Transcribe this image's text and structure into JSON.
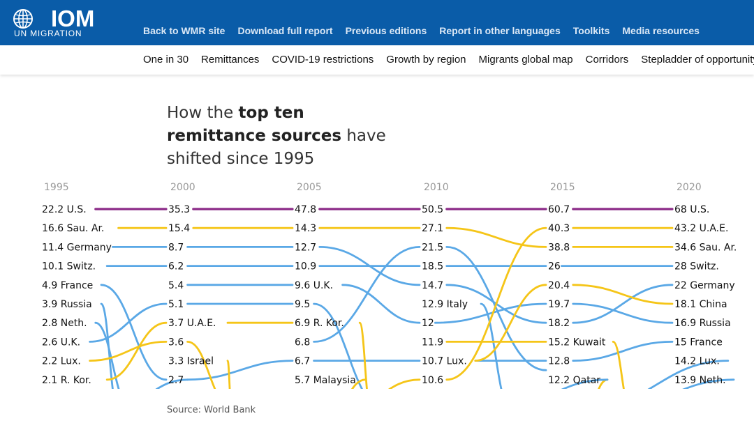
{
  "header": {
    "logo_text": "IOM",
    "logo_sub": "UN MIGRATION",
    "nav": [
      "Back to WMR site",
      "Download full report",
      "Previous editions",
      "Report in other languages",
      "Toolkits",
      "Media resources"
    ]
  },
  "subnav": {
    "items": [
      "One in 30",
      "Remittances",
      "COVID-19 restrictions",
      "Growth by region",
      "Migrants global map",
      "Corridors",
      "Stepladder of opportunity"
    ]
  },
  "title": {
    "part1": "How the ",
    "bold": "top ten remittance sources",
    "part2": " have shifted since 1995"
  },
  "source": "Source: World Bank",
  "colors": {
    "topbar": "#0a5ca8",
    "us": "#8b2a87",
    "gulf": "#f5c518",
    "other": "#5aa8e6",
    "year_label": "#999999"
  },
  "chart_data": {
    "type": "line",
    "subtype": "slope-rank",
    "years": [
      "1995",
      "2000",
      "2005",
      "2010",
      "2015",
      "2020"
    ],
    "columns": [
      [
        {
          "value": "22.2",
          "country": "U.S."
        },
        {
          "value": "16.6",
          "country": "Sau. Ar."
        },
        {
          "value": "11.4",
          "country": "Germany"
        },
        {
          "value": "10.1",
          "country": "Switz."
        },
        {
          "value": "4.9",
          "country": "France"
        },
        {
          "value": "3.9",
          "country": "Russia"
        },
        {
          "value": "2.8",
          "country": "Neth."
        },
        {
          "value": "2.6",
          "country": "U.K."
        },
        {
          "value": "2.2",
          "country": "Lux."
        },
        {
          "value": "2.1",
          "country": "R. Kor."
        }
      ],
      [
        {
          "value": "35.3",
          "country": ""
        },
        {
          "value": "15.4",
          "country": ""
        },
        {
          "value": "8.7",
          "country": ""
        },
        {
          "value": "6.2",
          "country": ""
        },
        {
          "value": "5.4",
          "country": ""
        },
        {
          "value": "5.1",
          "country": ""
        },
        {
          "value": "3.7",
          "country": "U.A.E."
        },
        {
          "value": "3.6",
          "country": ""
        },
        {
          "value": "3.3",
          "country": "Israel"
        },
        {
          "value": "2.7",
          "country": ""
        }
      ],
      [
        {
          "value": "47.8",
          "country": ""
        },
        {
          "value": "14.3",
          "country": ""
        },
        {
          "value": "12.7",
          "country": ""
        },
        {
          "value": "10.9",
          "country": ""
        },
        {
          "value": "9.6",
          "country": "U.K."
        },
        {
          "value": "9.5",
          "country": ""
        },
        {
          "value": "6.9",
          "country": "R. Kor."
        },
        {
          "value": "6.8",
          "country": ""
        },
        {
          "value": "6.7",
          "country": ""
        },
        {
          "value": "5.7",
          "country": "Malaysia"
        }
      ],
      [
        {
          "value": "50.5",
          "country": ""
        },
        {
          "value": "27.1",
          "country": ""
        },
        {
          "value": "21.5",
          "country": ""
        },
        {
          "value": "18.5",
          "country": ""
        },
        {
          "value": "14.7",
          "country": ""
        },
        {
          "value": "12.9",
          "country": "Italy"
        },
        {
          "value": "12",
          "country": ""
        },
        {
          "value": "11.9",
          "country": ""
        },
        {
          "value": "10.7",
          "country": "Lux."
        },
        {
          "value": "10.6",
          "country": ""
        }
      ],
      [
        {
          "value": "60.7",
          "country": ""
        },
        {
          "value": "40.3",
          "country": ""
        },
        {
          "value": "38.8",
          "country": ""
        },
        {
          "value": "26",
          "country": ""
        },
        {
          "value": "20.4",
          "country": ""
        },
        {
          "value": "19.7",
          "country": ""
        },
        {
          "value": "18.2",
          "country": ""
        },
        {
          "value": "15.2",
          "country": "Kuwait"
        },
        {
          "value": "12.8",
          "country": ""
        },
        {
          "value": "12.2",
          "country": "Qatar"
        }
      ],
      [
        {
          "value": "68",
          "country": "U.S."
        },
        {
          "value": "43.2",
          "country": "U.A.E."
        },
        {
          "value": "34.6",
          "country": "Sau. Ar."
        },
        {
          "value": "28",
          "country": "Switz."
        },
        {
          "value": "22",
          "country": "Germany"
        },
        {
          "value": "18.1",
          "country": "China"
        },
        {
          "value": "16.9",
          "country": "Russia"
        },
        {
          "value": "15",
          "country": "France"
        },
        {
          "value": "14.2",
          "country": "Lux."
        },
        {
          "value": "13.9",
          "country": "Neth."
        }
      ]
    ],
    "links": [
      {
        "from": [
          0,
          0
        ],
        "to": [
          1,
          0
        ],
        "color": "us"
      },
      {
        "from": [
          1,
          0
        ],
        "to": [
          2,
          0
        ],
        "color": "us"
      },
      {
        "from": [
          2,
          0
        ],
        "to": [
          3,
          0
        ],
        "color": "us"
      },
      {
        "from": [
          3,
          0
        ],
        "to": [
          4,
          0
        ],
        "color": "us"
      },
      {
        "from": [
          4,
          0
        ],
        "to": [
          5,
          0
        ],
        "color": "us"
      },
      {
        "from": [
          0,
          1
        ],
        "to": [
          1,
          1
        ],
        "color": "gulf"
      },
      {
        "from": [
          1,
          1
        ],
        "to": [
          2,
          1
        ],
        "color": "gulf"
      },
      {
        "from": [
          2,
          1
        ],
        "to": [
          3,
          1
        ],
        "color": "gulf"
      },
      {
        "from": [
          3,
          1
        ],
        "to": [
          4,
          2
        ],
        "color": "gulf"
      },
      {
        "from": [
          4,
          2
        ],
        "to": [
          5,
          2
        ],
        "color": "gulf"
      },
      {
        "from": [
          0,
          2
        ],
        "to": [
          1,
          2
        ],
        "color": "other"
      },
      {
        "from": [
          1,
          2
        ],
        "to": [
          2,
          2
        ],
        "color": "other"
      },
      {
        "from": [
          2,
          2
        ],
        "to": [
          3,
          4
        ],
        "color": "other"
      },
      {
        "from": [
          3,
          4
        ],
        "to": [
          4,
          6
        ],
        "color": "other"
      },
      {
        "from": [
          4,
          6
        ],
        "to": [
          5,
          4
        ],
        "color": "other"
      },
      {
        "from": [
          0,
          3
        ],
        "to": [
          1,
          3
        ],
        "color": "other"
      },
      {
        "from": [
          1,
          3
        ],
        "to": [
          2,
          3
        ],
        "color": "other"
      },
      {
        "from": [
          2,
          3
        ],
        "to": [
          3,
          3
        ],
        "color": "other"
      },
      {
        "from": [
          3,
          3
        ],
        "to": [
          4,
          3
        ],
        "color": "other"
      },
      {
        "from": [
          4,
          3
        ],
        "to": [
          5,
          3
        ],
        "color": "other"
      },
      {
        "from": [
          0,
          4
        ],
        "to": [
          1,
          9
        ],
        "color": "other"
      },
      {
        "from": [
          1,
          9
        ],
        "to": [
          2,
          8
        ],
        "color": "other"
      },
      {
        "from": [
          2,
          8
        ],
        "to": [
          3,
          8
        ],
        "color": "other"
      },
      {
        "from": [
          3,
          8
        ],
        "to": [
          4,
          8
        ],
        "color": "other"
      },
      {
        "from": [
          4,
          8
        ],
        "to": [
          5,
          7
        ],
        "color": "other"
      },
      {
        "from": [
          0,
          5
        ],
        "to": [
          0.6,
          10.5
        ],
        "color": "other"
      },
      {
        "from": [
          1,
          4
        ],
        "to": [
          2,
          4
        ],
        "color": "other"
      },
      {
        "from": [
          2,
          4
        ],
        "to": [
          3,
          6
        ],
        "color": "other"
      },
      {
        "from": [
          3,
          6
        ],
        "to": [
          4,
          5
        ],
        "color": "other"
      },
      {
        "from": [
          4,
          5
        ],
        "to": [
          5,
          6
        ],
        "color": "other"
      },
      {
        "from": [
          0,
          6
        ],
        "to": [
          0.7,
          10.5
        ],
        "color": "other"
      },
      {
        "from": [
          0,
          7
        ],
        "to": [
          1,
          5
        ],
        "color": "other"
      },
      {
        "from": [
          1,
          5
        ],
        "to": [
          2,
          5
        ],
        "color": "other"
      },
      {
        "from": [
          2,
          5
        ],
        "to": [
          2.7,
          10.5
        ],
        "color": "other"
      },
      {
        "from": [
          0,
          8
        ],
        "to": [
          1,
          7
        ],
        "color": "gulf"
      },
      {
        "from": [
          1,
          7
        ],
        "to": [
          1.5,
          10.5
        ],
        "color": "gulf"
      },
      {
        "from": [
          0,
          9
        ],
        "to": [
          1,
          6
        ],
        "color": "gulf"
      },
      {
        "from": [
          1,
          6
        ],
        "to": [
          2,
          6
        ],
        "color": "gulf"
      },
      {
        "from": [
          2,
          6
        ],
        "to": [
          2.6,
          10.5
        ],
        "color": "gulf"
      },
      {
        "from": [
          1,
          8
        ],
        "to": [
          1.5,
          10.5
        ],
        "color": "gulf"
      },
      {
        "from": [
          1,
          9
        ],
        "to": [
          0.55,
          10.5
        ],
        "color": "other"
      },
      {
        "from": [
          2,
          7
        ],
        "to": [
          3,
          2
        ],
        "color": "other"
      },
      {
        "from": [
          3,
          2
        ],
        "to": [
          4,
          8.5
        ],
        "color": "other"
      },
      {
        "from": [
          2,
          9
        ],
        "to": [
          2.3,
          10.5
        ],
        "color": "gulf"
      },
      {
        "from": [
          2.4,
          10.5
        ],
        "to": [
          3,
          9
        ],
        "color": "gulf"
      },
      {
        "from": [
          3,
          5
        ],
        "to": [
          3.7,
          10.5
        ],
        "color": "other"
      },
      {
        "from": [
          3,
          7
        ],
        "to": [
          4,
          7
        ],
        "color": "gulf"
      },
      {
        "from": [
          3,
          9
        ],
        "to": [
          4,
          1
        ],
        "color": "gulf"
      },
      {
        "from": [
          3,
          8
        ],
        "to": [
          4,
          4
        ],
        "color": "gulf"
      },
      {
        "from": [
          4,
          1
        ],
        "to": [
          5,
          1
        ],
        "color": "gulf"
      },
      {
        "from": [
          4,
          4
        ],
        "to": [
          5,
          5
        ],
        "color": "gulf"
      },
      {
        "from": [
          4,
          7
        ],
        "to": [
          4.65,
          10.5
        ],
        "color": "gulf"
      },
      {
        "from": [
          4,
          9
        ],
        "to": [
          4.3,
          10.5
        ],
        "color": "gulf"
      },
      {
        "from": [
          5,
          9
        ],
        "to": [
          4.5,
          10.5
        ],
        "color": "other"
      },
      {
        "from": [
          5,
          8
        ],
        "to": [
          4.3,
          10.5
        ],
        "color": "other"
      },
      {
        "from": [
          4,
          9
        ],
        "to": [
          3.6,
          10.5
        ],
        "color": "other"
      }
    ]
  }
}
